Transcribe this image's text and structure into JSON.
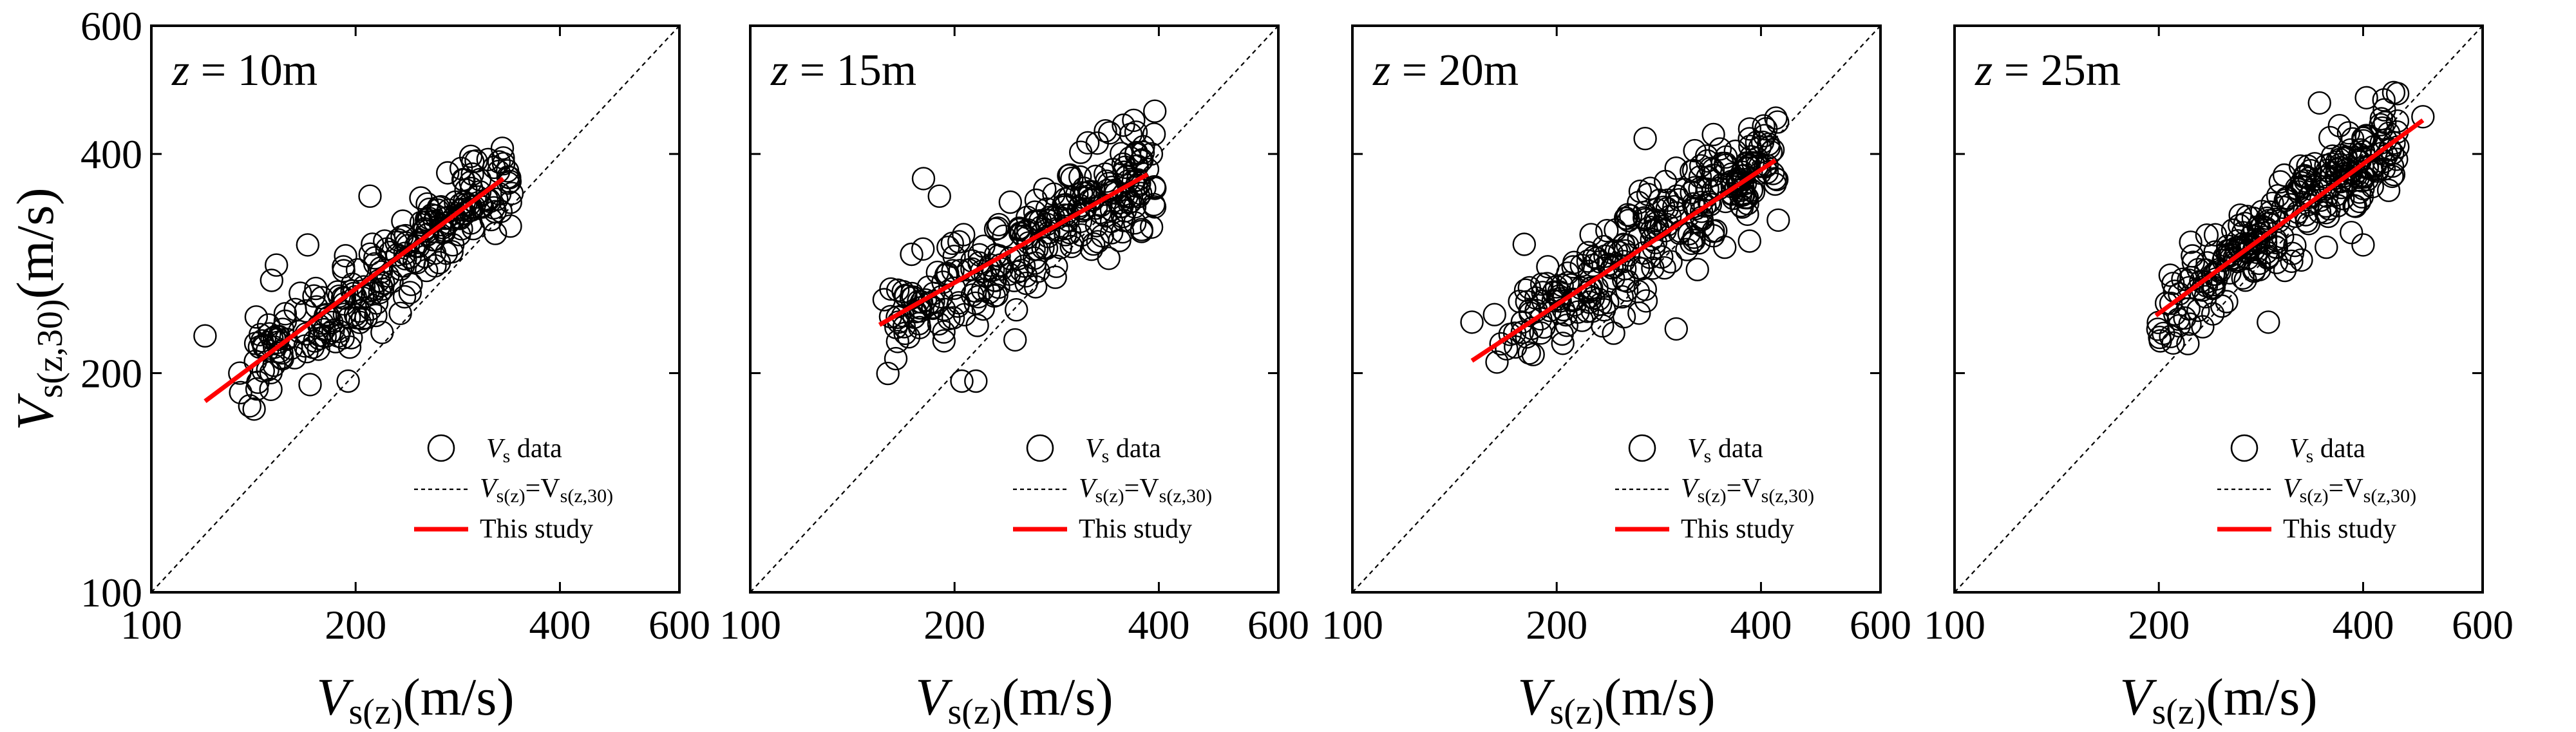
{
  "chart_data": {
    "type": "scatter",
    "scale": "log-log",
    "xlim": [
      100,
      600
    ],
    "ylim": [
      100,
      600
    ],
    "xticks": [
      100,
      200,
      400,
      600
    ],
    "yticks": [
      100,
      200,
      400,
      600
    ],
    "tick_labels": [
      "100",
      "200",
      "400",
      "600"
    ],
    "xlabel": {
      "main": "V",
      "sub": "s(z)",
      "unit": "(m/s)"
    },
    "ylabel": {
      "main": "V",
      "sub": "s(z,30)",
      "unit": "(m/s)"
    },
    "legend": {
      "position": "bottom-right",
      "entries": [
        {
          "key": "data",
          "label_main": "V",
          "label_sub": "s",
          "label_tail": "  data"
        },
        {
          "key": "identity",
          "label_parts": [
            "V",
            "s(z)",
            "=V",
            "s(z,30)"
          ]
        },
        {
          "key": "fit",
          "label": "This study"
        }
      ]
    },
    "panels": [
      {
        "label": "z = 10m",
        "label_var": "z",
        "label_rest": " = 10m",
        "fit_line": {
          "x": [
            120,
            330
          ],
          "y": [
            183,
            370
          ]
        },
        "cloud": {
          "x_range": [
            135,
            340
          ],
          "slope": 0.68,
          "intercept_at": [
            190,
            250
          ],
          "scatter": 0.075,
          "count": 240,
          "seed": 11
        },
        "outliers": [
          [
            120,
            225
          ],
          [
            135,
            200
          ],
          [
            150,
            190
          ],
          [
            195,
            195
          ],
          [
            330,
            395
          ],
          [
            210,
            350
          ],
          [
            170,
            300
          ]
        ]
      },
      {
        "label": "z = 15m",
        "label_var": "z",
        "label_rest": " = 15m",
        "fit_line": {
          "x": [
            155,
            385
          ],
          "y": [
            233,
            375
          ]
        },
        "cloud": {
          "x_range": [
            155,
            395
          ],
          "slope": 0.53,
          "intercept_at": [
            250,
            300
          ],
          "scatter": 0.08,
          "count": 260,
          "seed": 23
        },
        "outliers": [
          [
            180,
            370
          ],
          [
            190,
            350
          ],
          [
            205,
            195
          ],
          [
            215,
            195
          ],
          [
            165,
            260
          ],
          [
            390,
            400
          ]
        ]
      },
      {
        "label": "z = 20m",
        "label_var": "z",
        "label_rest": " = 20m",
        "fit_line": {
          "x": [
            150,
            420
          ],
          "y": [
            208,
            392
          ]
        },
        "cloud": {
          "x_range": [
            160,
            425
          ],
          "slope": 0.62,
          "intercept_at": [
            300,
            320
          ],
          "scatter": 0.085,
          "count": 270,
          "seed": 37
        },
        "outliers": [
          [
            150,
            235
          ],
          [
            180,
            260
          ],
          [
            270,
            420
          ],
          [
            300,
            230
          ],
          [
            420,
            370
          ]
        ]
      },
      {
        "label": "z = 25m",
        "label_var": "z",
        "label_rest": " = 25m",
        "fit_line": {
          "x": [
            198,
            490
          ],
          "y": [
            240,
            445
          ]
        },
        "cloud": {
          "x_range": [
            195,
            450
          ],
          "slope": 0.7,
          "intercept_at": [
            300,
            320
          ],
          "scatter": 0.07,
          "count": 270,
          "seed": 53
        },
        "outliers": [
          [
            345,
            470
          ],
          [
            490,
            450
          ],
          [
            290,
            235
          ],
          [
            210,
            220
          ],
          [
            400,
            300
          ]
        ]
      }
    ],
    "colors": {
      "fit": "#ff0000",
      "marker": "#000000",
      "identity": "#000000",
      "frame": "#000000"
    }
  }
}
